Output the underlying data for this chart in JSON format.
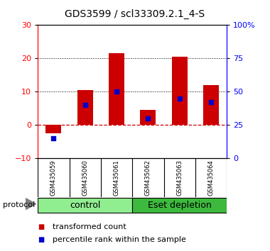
{
  "title": "GDS3599 / scl33309.2.1_4-S",
  "samples": [
    "GSM435059",
    "GSM435060",
    "GSM435061",
    "GSM435062",
    "GSM435063",
    "GSM435064"
  ],
  "transformed_count": [
    -2.5,
    10.5,
    21.5,
    4.5,
    20.5,
    12.0
  ],
  "percentile_rank_right": [
    15,
    40,
    50,
    30,
    45,
    42
  ],
  "groups": [
    {
      "label": "control",
      "samples": [
        0,
        1,
        2
      ],
      "color": "#90ee90"
    },
    {
      "label": "Eset depletion",
      "samples": [
        3,
        4,
        5
      ],
      "color": "#3dba3d"
    }
  ],
  "ylim_left": [
    -10,
    30
  ],
  "ylim_right": [
    0,
    100
  ],
  "yticks_left": [
    -10,
    0,
    10,
    20,
    30
  ],
  "yticks_right": [
    0,
    25,
    50,
    75,
    100
  ],
  "ytick_labels_right": [
    "0",
    "25",
    "50",
    "75",
    "100%"
  ],
  "bar_color": "#cc0000",
  "dot_color": "#0000cc",
  "background_color": "#ffffff",
  "zero_line_color": "#cc0000",
  "protocol_label": "protocol",
  "legend_tc": "transformed count",
  "legend_pr": "percentile rank within the sample",
  "title_fontsize": 10,
  "tick_fontsize": 8,
  "sample_fontsize": 6,
  "group_label_fontsize": 9,
  "legend_fontsize": 8
}
